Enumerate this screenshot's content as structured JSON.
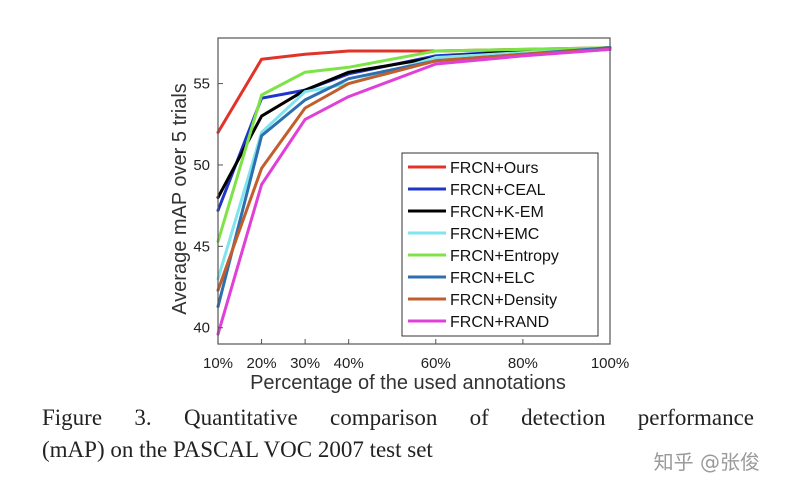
{
  "chart_data": {
    "type": "line",
    "xlabel": "Percentage of the used annotations",
    "ylabel": "Average mAP over 5 trials",
    "x": [
      10,
      20,
      30,
      40,
      60,
      80,
      100
    ],
    "x_tick_labels": [
      "10%",
      "20%",
      "30%",
      "40%",
      "60%",
      "80%",
      "100%"
    ],
    "y_ticks": [
      40,
      45,
      50,
      55
    ],
    "xlim": [
      10,
      100
    ],
    "ylim": [
      39,
      57.8
    ],
    "grid": false,
    "legend_position": "bottom-right",
    "series": [
      {
        "name": "FRCN+Ours",
        "color": "#e0342a",
        "values": [
          52.0,
          56.5,
          56.8,
          57.0,
          57.0,
          57.1,
          57.2
        ]
      },
      {
        "name": "FRCN+CEAL",
        "color": "#1f35c9",
        "values": [
          47.2,
          54.1,
          54.6,
          55.6,
          56.7,
          57.0,
          57.2
        ]
      },
      {
        "name": "FRCN+K-EM",
        "color": "#000000",
        "values": [
          48.0,
          53.0,
          54.6,
          55.7,
          56.6,
          57.0,
          57.2
        ]
      },
      {
        "name": "FRCN+EMC",
        "color": "#7fe5ef",
        "values": [
          43.0,
          52.0,
          54.5,
          55.0,
          56.6,
          56.9,
          57.2
        ]
      },
      {
        "name": "FRCN+Entropy",
        "color": "#7ee346",
        "values": [
          45.3,
          54.3,
          55.7,
          56.0,
          57.0,
          57.1,
          57.2
        ]
      },
      {
        "name": "FRCN+ELC",
        "color": "#2e6fb0",
        "values": [
          41.3,
          51.8,
          54.0,
          55.3,
          56.4,
          56.8,
          57.2
        ]
      },
      {
        "name": "FRCN+Density",
        "color": "#c25e2c",
        "values": [
          42.3,
          49.8,
          53.5,
          55.0,
          56.4,
          56.8,
          57.1
        ]
      },
      {
        "name": "FRCN+RAND",
        "color": "#e040d8",
        "values": [
          39.6,
          48.8,
          52.8,
          54.2,
          56.2,
          56.7,
          57.1
        ]
      }
    ]
  },
  "caption": {
    "line1": "Figure 3. Quantitative comparison of detection performance",
    "line2": "(mAP) on the PASCAL VOC 2007 test set"
  },
  "watermark": "知乎 @张俊"
}
